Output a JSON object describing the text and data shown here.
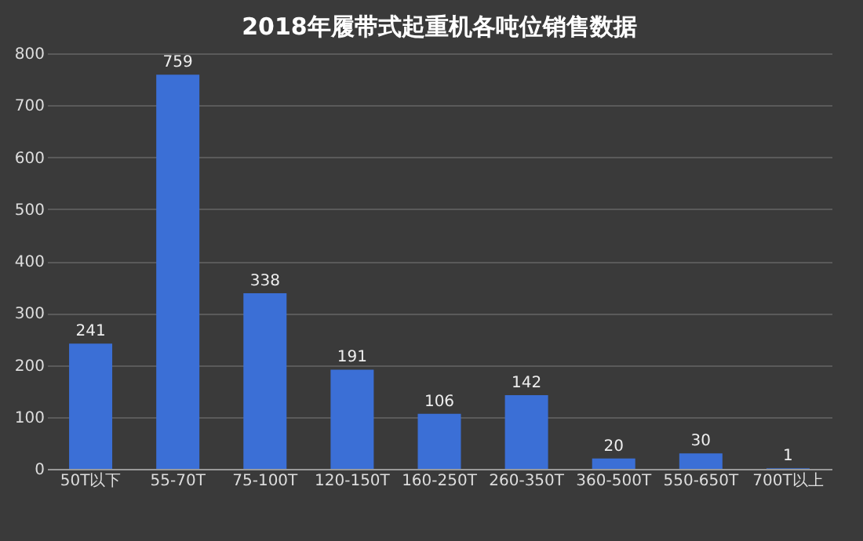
{
  "chart_data": {
    "type": "bar",
    "title": "2018年履带式起重机各吨位销售数据",
    "categories": [
      "50T以下",
      "55-70T",
      "75-100T",
      "120-150T",
      "160-250T",
      "260-350T",
      "360-500T",
      "550-650T",
      "700T以上"
    ],
    "values": [
      241,
      759,
      338,
      191,
      106,
      142,
      20,
      30,
      1
    ],
    "color": "#3b6fd6",
    "ylim": [
      0,
      800
    ],
    "yticks": [
      0,
      100,
      200,
      300,
      400,
      500,
      600,
      700,
      800
    ],
    "grid": "y",
    "data_labels": true
  }
}
